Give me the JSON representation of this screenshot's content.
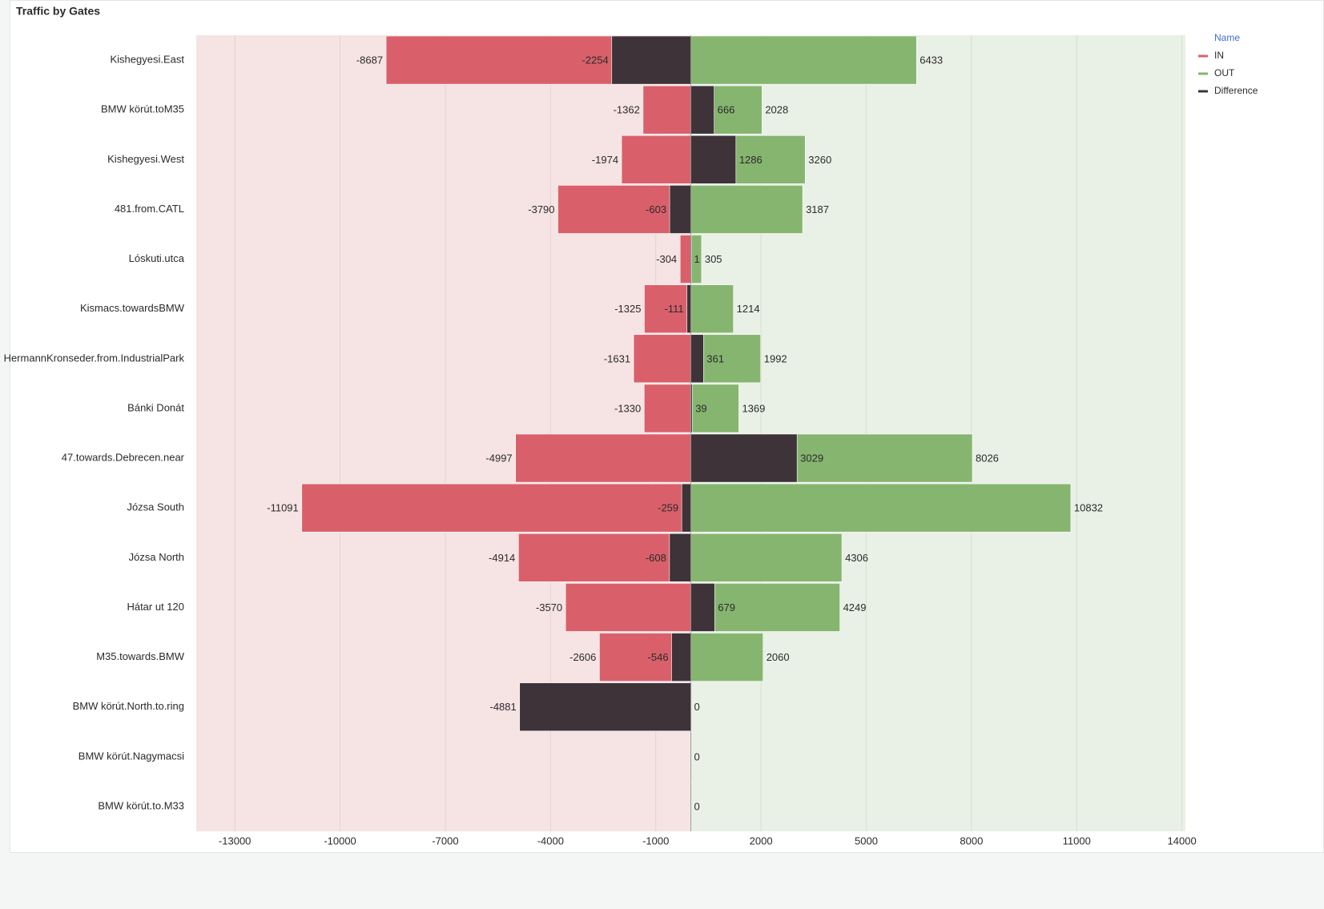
{
  "chart_data": {
    "type": "diverging_bar",
    "title": "Traffic by Gates",
    "legend_title": "Name",
    "legend": "top-right",
    "categories": [
      "Kishegyesi.East",
      "BMW körút.toM35",
      "Kishegyesi.West",
      "481.from.CATL",
      "Lóskuti.utca",
      "Kismacs.towardsBMW",
      "HermannKronseder.from.IndustrialPark",
      "Bánki Donát",
      "47.towards.Debrecen.near",
      "Józsa South",
      "Józsa North",
      "Hátar ut 120",
      "M35.towards.BMW",
      "BMW körút.North.to.ring",
      "BMW körút.Nagymacsi",
      "BMW körút.to.M33"
    ],
    "series": [
      {
        "name": "IN",
        "color": "#d9606a",
        "values": [
          -8687,
          -1362,
          -1974,
          -3790,
          -304,
          -1325,
          -1631,
          -1330,
          -4997,
          -11091,
          -4914,
          -3570,
          -2606,
          null,
          null,
          null
        ]
      },
      {
        "name": "OUT",
        "color": "#86b570",
        "values": [
          6433,
          2028,
          3260,
          3187,
          305,
          1214,
          1992,
          1369,
          8026,
          10832,
          4306,
          4249,
          2060,
          0,
          0,
          0
        ]
      },
      {
        "name": "Difference",
        "color": "#3d3338",
        "values": [
          -2254,
          666,
          1286,
          -603,
          1,
          -111,
          361,
          39,
          3029,
          -259,
          -608,
          679,
          -546,
          -4881,
          null,
          null
        ]
      }
    ],
    "xlim": [
      -14100,
      14100
    ],
    "xticks": [
      -13000,
      -10000,
      -7000,
      -4000,
      -1000,
      2000,
      5000,
      8000,
      11000,
      14000
    ],
    "grid": true
  }
}
